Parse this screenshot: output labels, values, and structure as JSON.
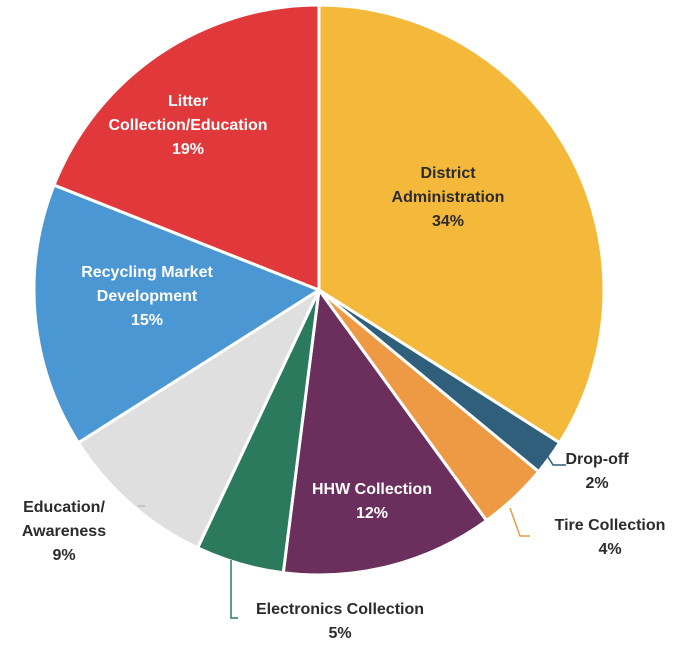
{
  "chart_data": {
    "type": "pie",
    "title": "",
    "slices": [
      {
        "label_lines": [
          "District",
          "Administration"
        ],
        "value_text": "34%",
        "value": 34,
        "color": "#f4b93a"
      },
      {
        "label_lines": [
          "Drop-off"
        ],
        "value_text": "2%",
        "value": 2,
        "color": "#2f5f7a"
      },
      {
        "label_lines": [
          "Tire Collection"
        ],
        "value_text": "4%",
        "value": 4,
        "color": "#ee9a45"
      },
      {
        "label_lines": [
          "HHW Collection"
        ],
        "value_text": "12%",
        "value": 12,
        "color": "#6a2f5c"
      },
      {
        "label_lines": [
          "Electronics Collection"
        ],
        "value_text": "5%",
        "value": 5,
        "color": "#2b7a5e"
      },
      {
        "label_lines": [
          "Education/",
          "Awareness"
        ],
        "value_text": "9%",
        "value": 9,
        "color": "#dfdfdf"
      },
      {
        "label_lines": [
          "Recycling Market",
          "Development"
        ],
        "value_text": "15%",
        "value": 15,
        "color": "#4b97d4"
      },
      {
        "label_lines": [
          "Litter",
          "Collection/Education"
        ],
        "value_text": "19%",
        "value": 19,
        "color": "#e0383b"
      }
    ],
    "start_angle": "12 o'clock",
    "direction": "clockwise",
    "legend": "none"
  }
}
